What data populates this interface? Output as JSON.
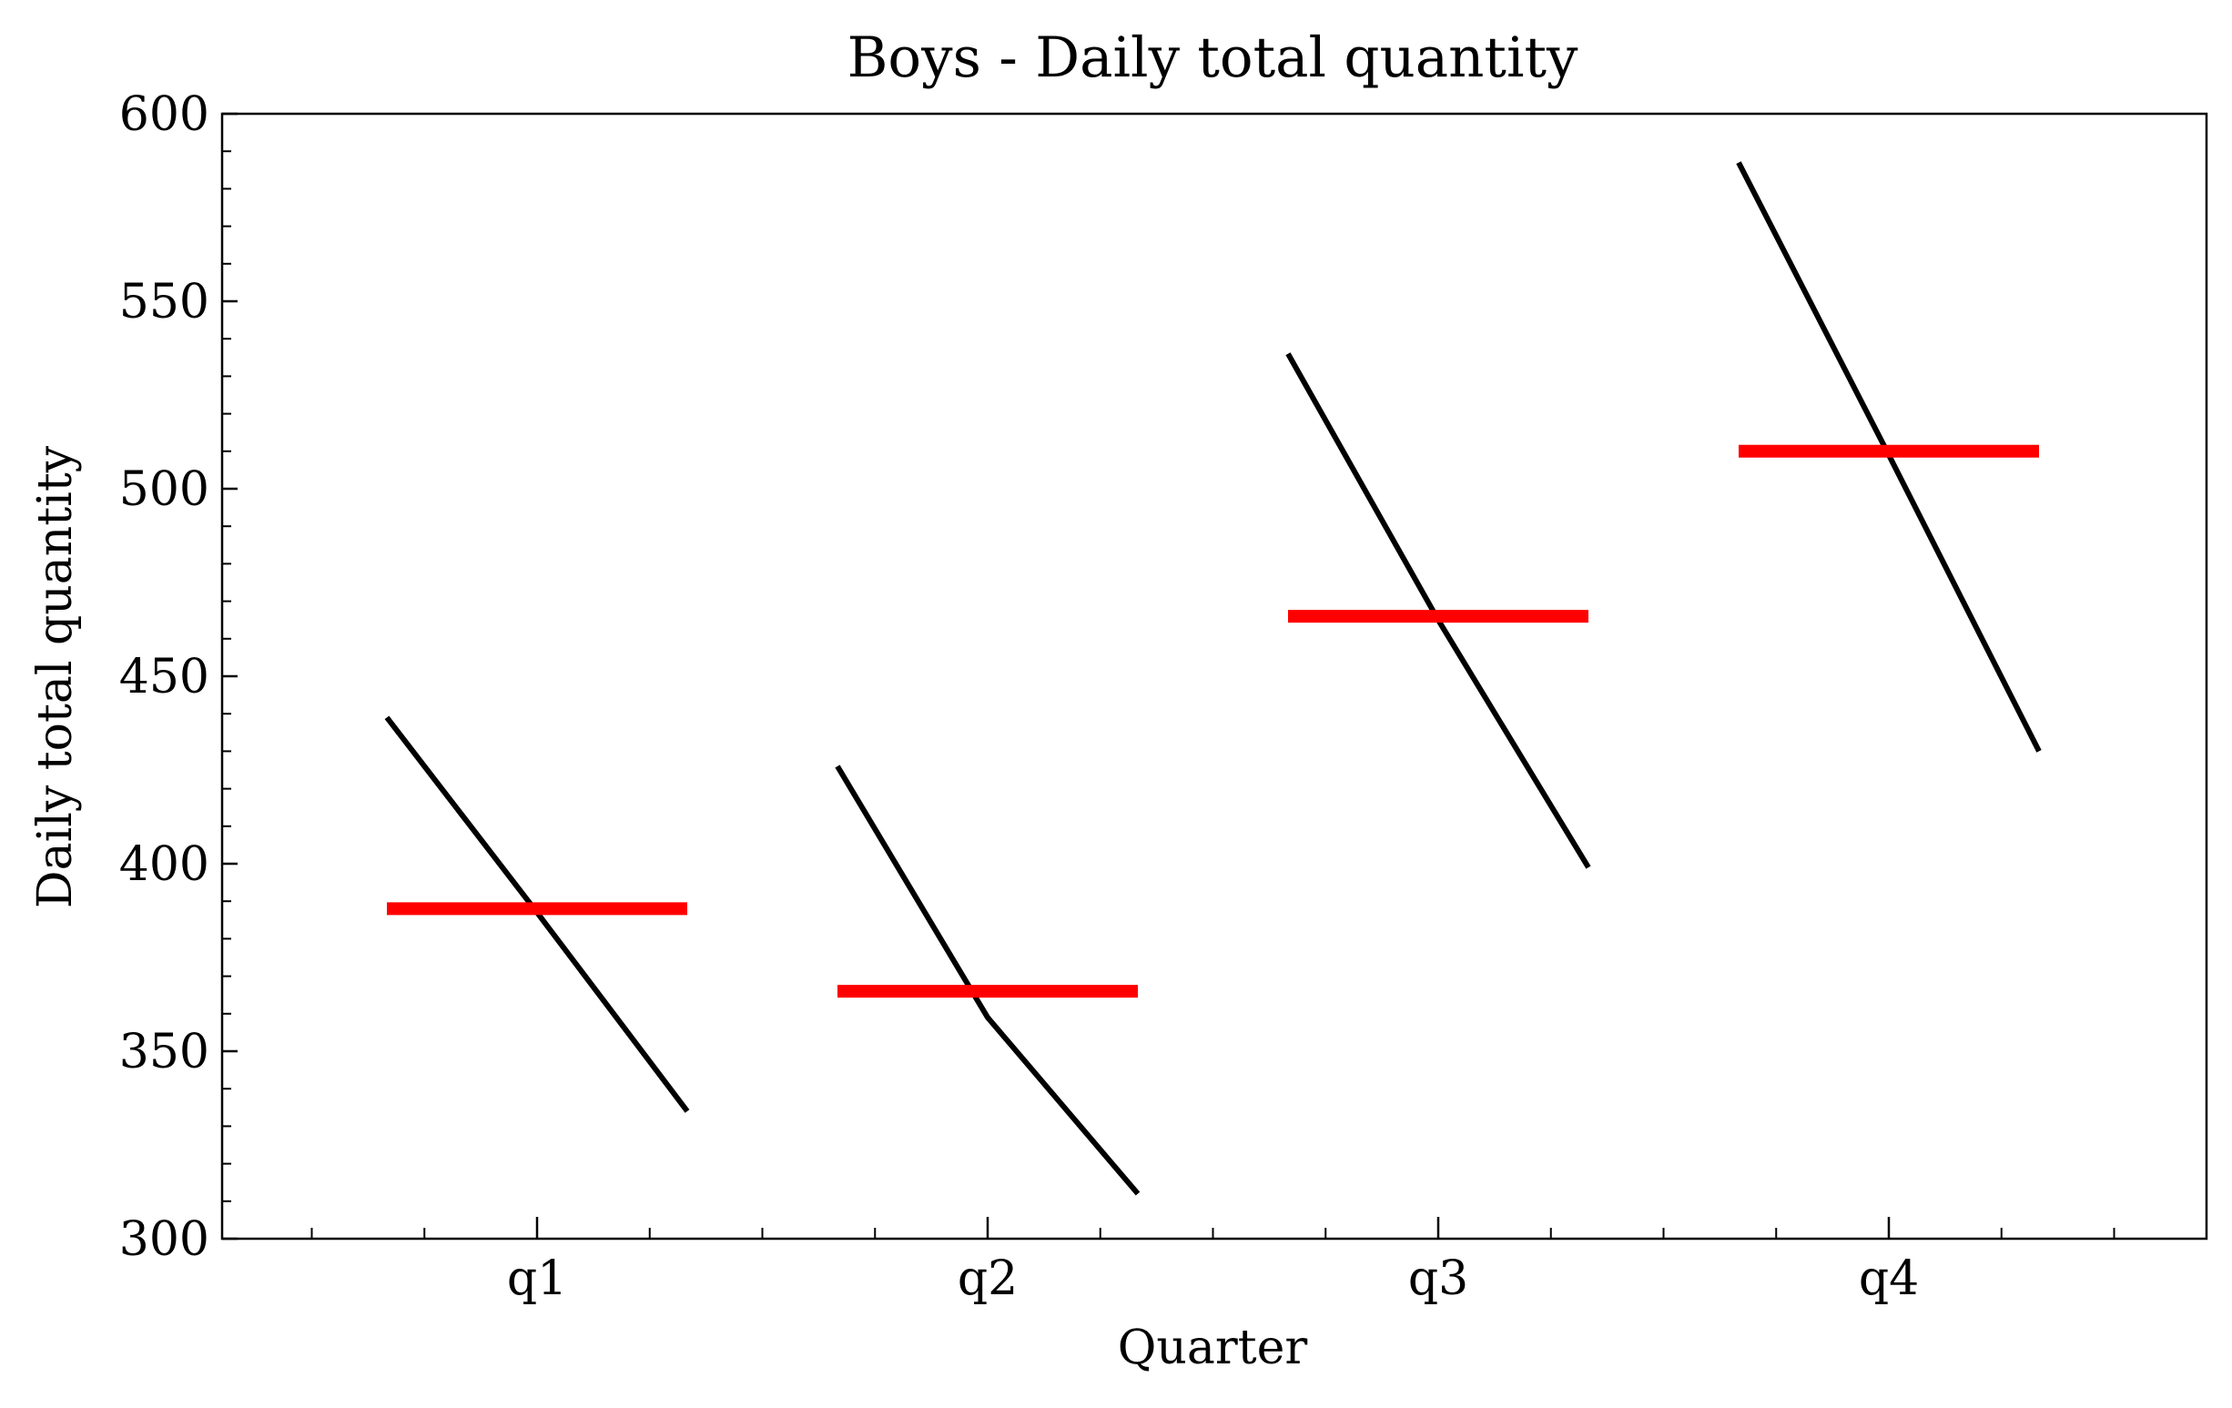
{
  "chart_data": {
    "type": "line",
    "title": "Boys - Daily total quantity",
    "xlabel": "Quarter",
    "ylabel": "Daily total quantity",
    "categories": [
      "q1",
      "q2",
      "q3",
      "q4"
    ],
    "ylim": [
      300,
      600
    ],
    "yticks": [
      300,
      350,
      400,
      450,
      500,
      550,
      600
    ],
    "yticks_labels": [
      "300",
      "350",
      "400",
      "450",
      "500",
      "550",
      "600"
    ],
    "grid": false,
    "series": [
      {
        "color": "#000000",
        "groups": [
          [
            439,
            387,
            334
          ],
          [
            426,
            359,
            312
          ],
          [
            536,
            465,
            399
          ],
          [
            587,
            509,
            430
          ]
        ]
      },
      {
        "color": "#ff0000",
        "groups": [
          [
            388,
            388
          ],
          [
            366,
            366
          ],
          [
            466,
            466
          ],
          [
            510,
            510
          ]
        ]
      }
    ]
  }
}
